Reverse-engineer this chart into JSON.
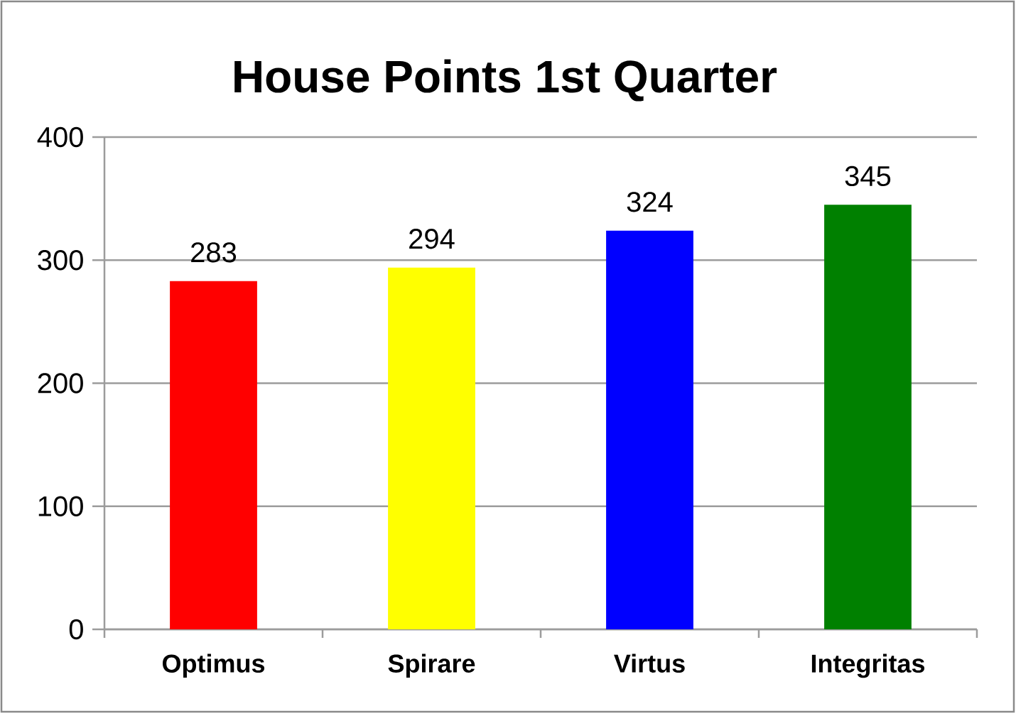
{
  "chart_data": {
    "type": "bar",
    "title": "House Points 1st Quarter",
    "categories": [
      "Optimus",
      "Spirare",
      "Virtus",
      "Integritas"
    ],
    "values": [
      283,
      294,
      324,
      345
    ],
    "colors": [
      "#ff0000",
      "#ffff00",
      "#0000ff",
      "#008000"
    ],
    "ylim": [
      0,
      400
    ],
    "yticks": [
      0,
      100,
      200,
      300,
      400
    ],
    "grid": "y",
    "data_labels": true
  }
}
